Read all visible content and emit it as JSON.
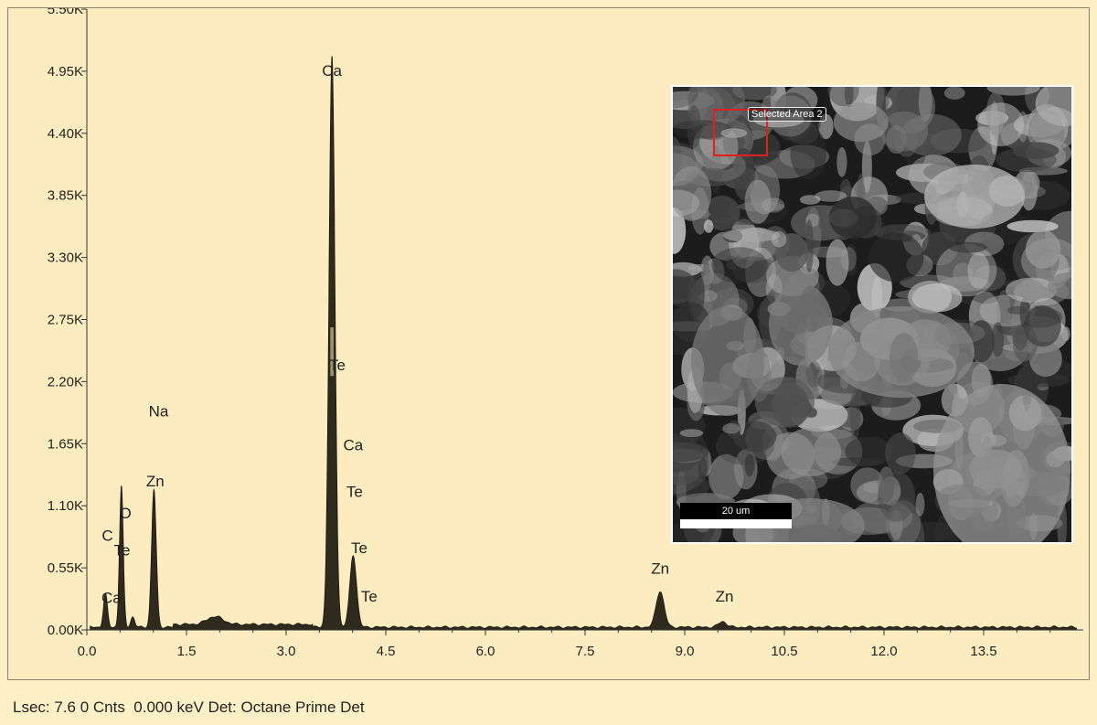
{
  "chart_data": {
    "type": "line",
    "title": "",
    "xlabel": "",
    "ylabel": "",
    "xlim": [
      0,
      15
    ],
    "ylim": [
      0,
      5500
    ],
    "x_ticks": [
      "0.0",
      "1.5",
      "3.0",
      "4.5",
      "6.0",
      "7.5",
      "9.0",
      "10.5",
      "12.0",
      "13.5"
    ],
    "y_ticks": [
      "0.00K",
      "0.55K",
      "1.10K",
      "1.65K",
      "2.20K",
      "2.75K",
      "3.30K",
      "3.85K",
      "4.40K",
      "4.95K",
      "5.50K"
    ],
    "x_tick_values": [
      0,
      1.5,
      3.0,
      4.5,
      6.0,
      7.5,
      9.0,
      10.5,
      12.0,
      13.5
    ],
    "y_tick_values": [
      0,
      550,
      1100,
      1650,
      2200,
      2750,
      3300,
      3850,
      4400,
      4950,
      5500
    ],
    "series": [
      {
        "peaks": [
          {
            "x": 0.28,
            "y": 290,
            "w": 0.03
          },
          {
            "x": 0.52,
            "y": 1250,
            "w": 0.028
          },
          {
            "x": 0.69,
            "y": 90,
            "w": 0.03
          },
          {
            "x": 1.01,
            "y": 1220,
            "w": 0.035
          },
          {
            "x": 1.93,
            "y": 70,
            "w": 0.12
          },
          {
            "x": 3.69,
            "y": 5050,
            "w": 0.045
          },
          {
            "x": 4.01,
            "y": 640,
            "w": 0.05
          },
          {
            "x": 8.63,
            "y": 320,
            "w": 0.06
          },
          {
            "x": 9.57,
            "y": 50,
            "w": 0.06
          }
        ],
        "background": 35
      }
    ],
    "peak_labels": [
      {
        "text": "Ca",
        "x": 3.69,
        "y": 4910
      },
      {
        "text": "Te",
        "x": 3.77,
        "y": 2300
      },
      {
        "text": "Ca",
        "x": 4.01,
        "y": 1590
      },
      {
        "text": "Te",
        "x": 4.03,
        "y": 1180
      },
      {
        "text": "Te",
        "x": 4.1,
        "y": 680
      },
      {
        "text": "Te",
        "x": 4.25,
        "y": 250
      },
      {
        "text": "Na",
        "x": 1.08,
        "y": 1890
      },
      {
        "text": "Zn",
        "x": 1.03,
        "y": 1270
      },
      {
        "text": "O",
        "x": 0.58,
        "y": 990
      },
      {
        "text": "C",
        "x": 0.31,
        "y": 790
      },
      {
        "text": "Te",
        "x": 0.53,
        "y": 660
      },
      {
        "text": "Ca",
        "x": 0.37,
        "y": 240
      },
      {
        "text": "Zn",
        "x": 8.63,
        "y": 500
      },
      {
        "text": "Zn",
        "x": 9.6,
        "y": 250
      }
    ]
  },
  "inset": {
    "selection_label": "Selected Area 2",
    "scale_label": "20 um"
  },
  "status_bar": {
    "text": "Lsec: 7.6 0 Cnts  0.000 keV Det: Octane Prime Det"
  },
  "colors": {
    "background": "#fcecbf",
    "spectrum_fill": "#2e2a1e",
    "selection_box": "#e02020"
  }
}
